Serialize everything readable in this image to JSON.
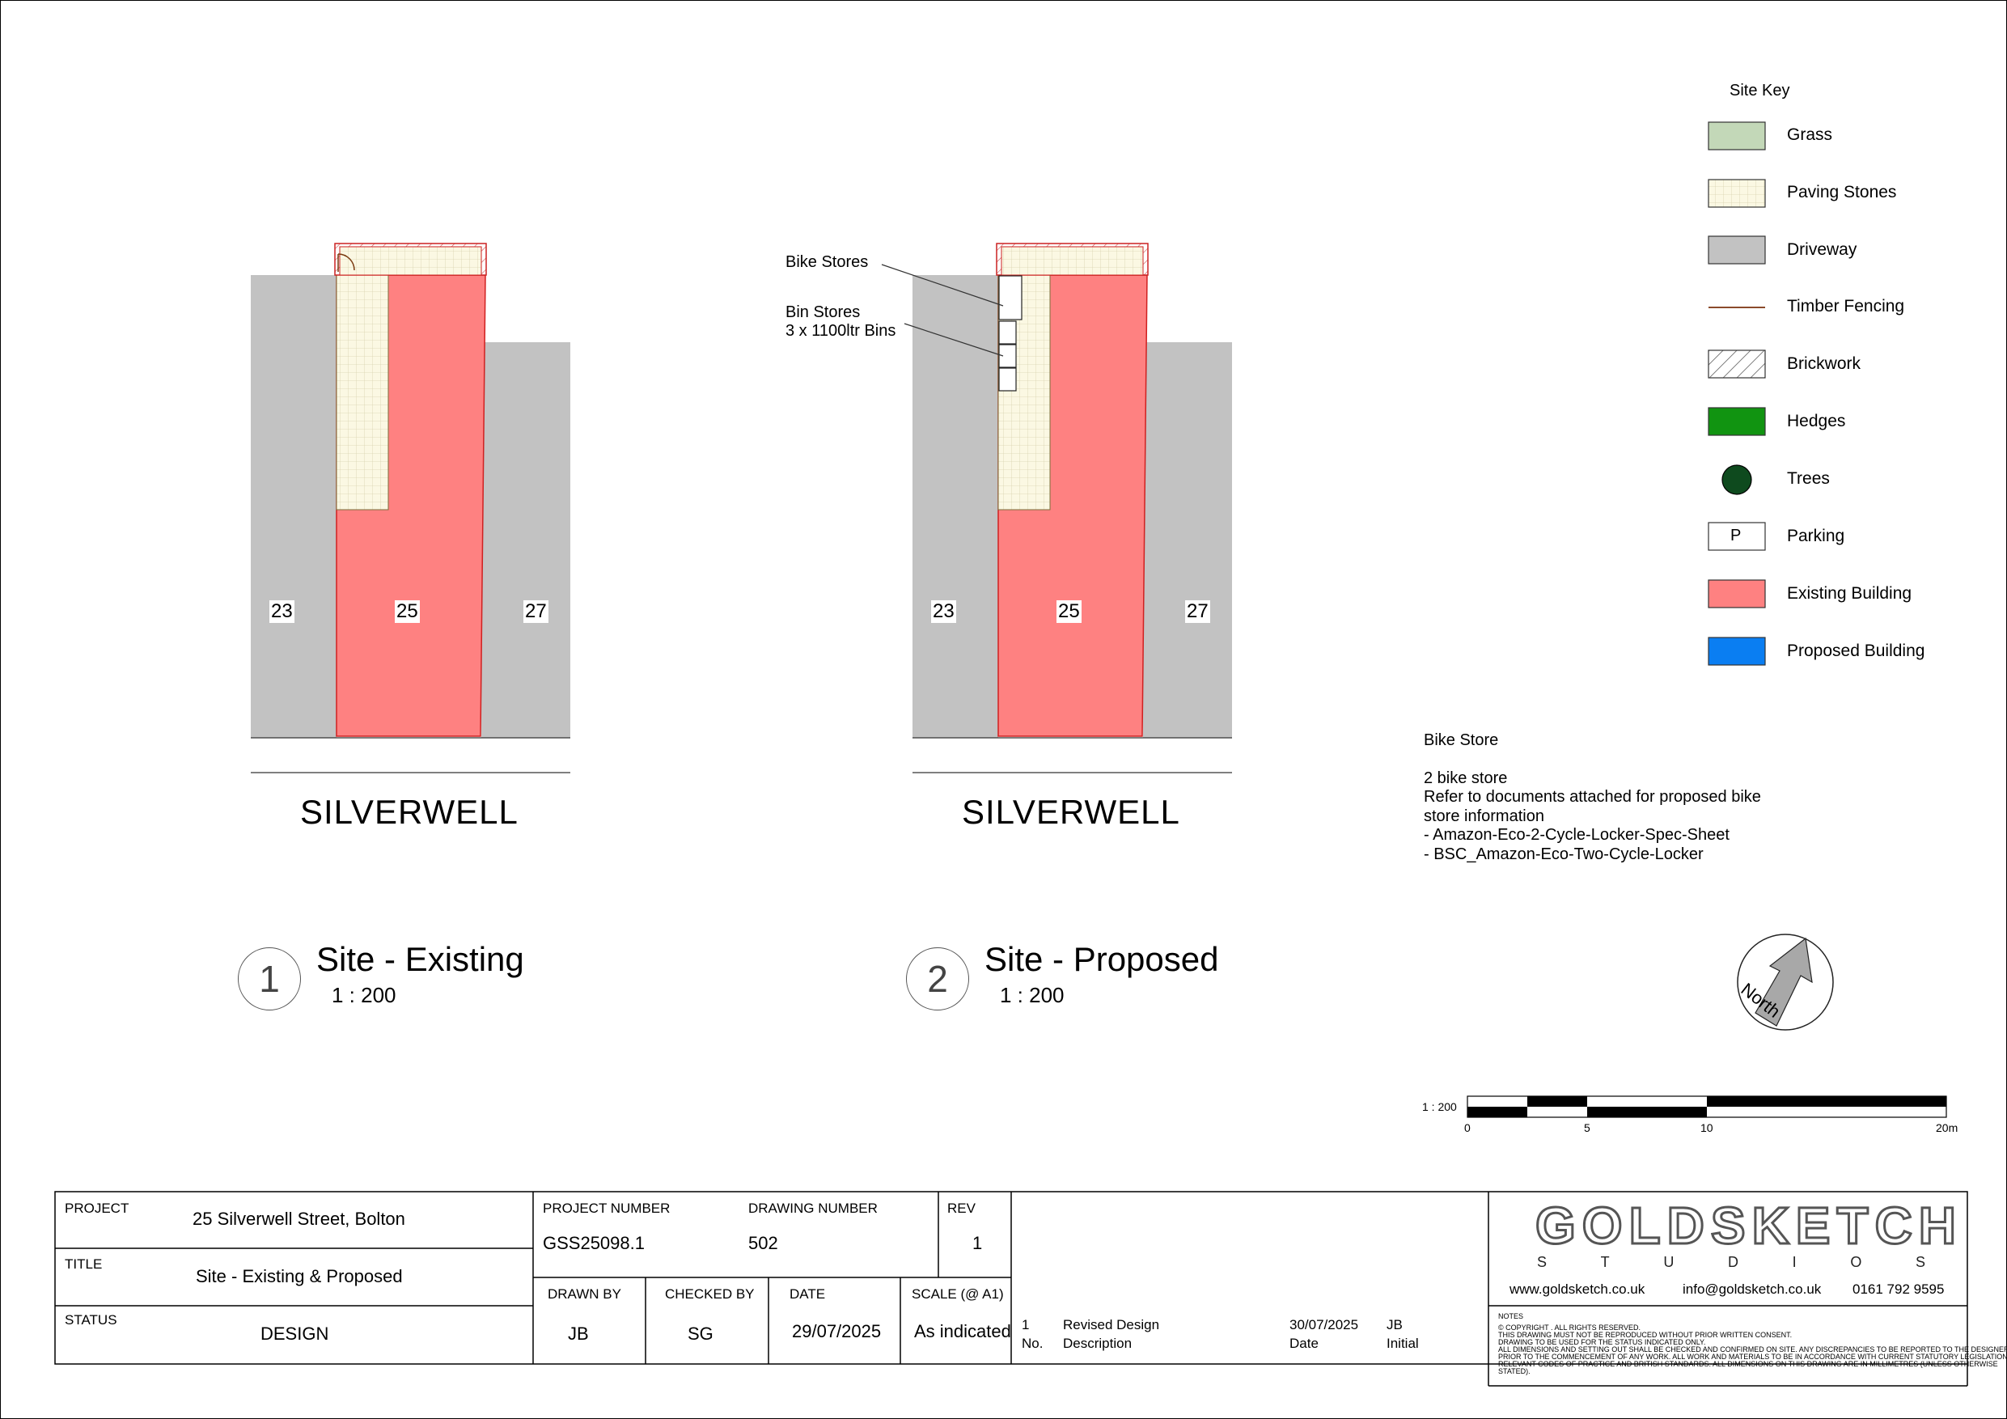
{
  "colors": {
    "grass": "#c3d8b8",
    "paving": "#fbf8e3",
    "driveway": "#c2c2c2",
    "timber_fencing": "#8b4a2b",
    "hedges": "#119411",
    "trees": "#0e4a1e",
    "existing_building": "#fe8181",
    "proposed_building": "#0a7ef2"
  },
  "site_key": {
    "title": "Site Key",
    "items": [
      {
        "label": "Grass",
        "icon": "grass-swatch"
      },
      {
        "label": "Paving Stones",
        "icon": "paving-swatch"
      },
      {
        "label": "Driveway",
        "icon": "driveway-swatch"
      },
      {
        "label": "Timber Fencing",
        "icon": "fence-line"
      },
      {
        "label": "Brickwork",
        "icon": "brick-hatch"
      },
      {
        "label": "Hedges",
        "icon": "hedge-swatch"
      },
      {
        "label": "Trees",
        "icon": "tree-circle"
      },
      {
        "label": "Parking",
        "icon": "parking-box",
        "symbol": "P"
      },
      {
        "label": "Existing Building",
        "icon": "existing-swatch"
      },
      {
        "label": "Proposed Building",
        "icon": "proposed-swatch"
      }
    ]
  },
  "existing_plan": {
    "plots": [
      "23",
      "25",
      "27"
    ],
    "street": "SILVERWELL",
    "number": "1",
    "title": "Site - Existing",
    "scale": "1 : 200"
  },
  "proposed_plan": {
    "plots": [
      "23",
      "25",
      "27"
    ],
    "street": "SILVERWELL",
    "number": "2",
    "title": "Site - Proposed",
    "scale": "1 : 200",
    "callout_bike": "Bike Stores",
    "callout_bin_1": "Bin Stores",
    "callout_bin_2": "3 x 1100ltr Bins"
  },
  "bike_note": {
    "heading": "Bike Store",
    "lines": [
      "2 bike store",
      "Refer to documents attached for proposed bike",
      "store information",
      "- Amazon-Eco-2-Cycle-Locker-Spec-Sheet",
      "- BSC_Amazon-Eco-Two-Cycle-Locker"
    ]
  },
  "north": {
    "label": "North"
  },
  "scale_bar": {
    "ratio": "1 : 200",
    "ticks": [
      "0",
      "5",
      "10",
      "20m"
    ]
  },
  "title_block": {
    "project_label": "PROJECT",
    "project": "25 Silverwell Street, Bolton",
    "title_label": "TITLE",
    "title": "Site - Existing & Proposed",
    "status_label": "STATUS",
    "status": "DESIGN",
    "project_number_label": "PROJECT NUMBER",
    "project_number": "GSS25098.1",
    "drawing_number_label": "DRAWING NUMBER",
    "drawing_number": "502",
    "rev_label": "REV",
    "rev": "1",
    "drawn_by_label": "DRAWN BY",
    "drawn_by": "JB",
    "checked_by_label": "CHECKED BY",
    "checked_by": "SG",
    "date_label": "DATE",
    "date": "29/07/2025",
    "scale_label": "SCALE (@ A1)",
    "scale": "As indicated",
    "revision": {
      "no": "1",
      "description": "Revised Design",
      "date": "30/07/2025",
      "initial": "JB"
    },
    "revision_headers": {
      "no": "No.",
      "description": "Description",
      "date": "Date",
      "initial": "Initial"
    },
    "company_name": "GOLDSKETCH",
    "company_sub": [
      "S",
      "T",
      "U",
      "D",
      "I",
      "O",
      "S"
    ],
    "website": "www.goldsketch.co.uk",
    "email": "info@goldsketch.co.uk",
    "phone": "0161 792 9595",
    "notes_heading": "NOTES",
    "notes": [
      "© COPYRIGHT . ALL RIGHTS RESERVED.",
      "THIS DRAWING MUST NOT BE REPRODUCED WITHOUT PRIOR WRITTEN CONSENT.",
      "DRAWING TO BE USED FOR THE STATUS INDICATED ONLY.",
      " ALL DIMENSIONS AND SETTING OUT SHALL BE CHECKED AND CONFIRMED ON SITE. ANY DISCREPANCIES TO BE REPORTED TO THE DESIGNER",
      "PRIOR TO THE COMMENCEMENT OF ANY WORK. ALL WORK AND MATERIALS TO BE IN ACCORDANCE WITH CURRENT STATUTORY LEGISLATION,",
      "RELEVANT CODES OF PRACTICE AND BRITISH STANDARDS. ALL DIMENSIONS ON THIS DRAWING ARE IN MILLIMETRES (UNLESS OTHERWISE",
      "STATED)."
    ]
  }
}
